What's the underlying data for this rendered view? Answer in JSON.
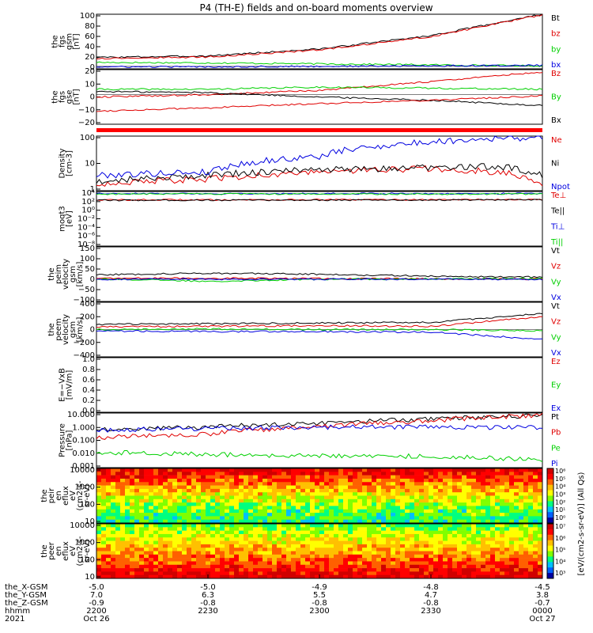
{
  "title": "P4 (TH-E) fields and on-board moments overview",
  "colors": {
    "black": "#000000",
    "red": "#e00000",
    "green": "#00d000",
    "blue": "#0000e0",
    "bar": "#ff0000"
  },
  "time_axis": {
    "ticks": [
      "2200",
      "2230",
      "2300",
      "2330",
      "0000"
    ],
    "dates": [
      "Oct 26",
      "",
      "",
      "",
      "Oct 27"
    ],
    "year": "2021",
    "row_labels": [
      "the_X-GSM",
      "the_Y-GSM",
      "the_Z-GSM",
      "hhmm"
    ],
    "rows": [
      [
        "-5.0",
        "-5.0",
        "-4.9",
        "-4.8",
        "-4.5"
      ],
      [
        "7.0",
        "6.3",
        "5.5",
        "4.7",
        "3.8"
      ],
      [
        "-0.9",
        "-0.8",
        "-0.8",
        "-0.8",
        "-0.7"
      ]
    ]
  },
  "colorbar": {
    "label": "[eV/(cm2-s-sr-eV)] (All Qs)",
    "ticks_peir": [
      "10⁶",
      "10⁵",
      "10⁴",
      "10³",
      "10²",
      "10¹",
      "10⁰"
    ],
    "ticks_peer": [
      "10⁷",
      "10⁶",
      "10⁵",
      "10⁴",
      "10³"
    ]
  },
  "chart_data": [
    {
      "type": "line",
      "ylabel": [
        "the",
        "fgs",
        "gsm",
        "[nT]"
      ],
      "yticks": [
        "100",
        "80",
        "60",
        "40",
        "20",
        "0"
      ],
      "ylim": [
        -5,
        105
      ],
      "legend": [
        {
          "label": "Bt",
          "color": "#000000"
        },
        {
          "label": "bz",
          "color": "#e00000"
        },
        {
          "label": "by",
          "color": "#00d000"
        },
        {
          "label": "bx",
          "color": "#0000e0"
        }
      ],
      "series": [
        {
          "label": "Bt",
          "color": "#000000",
          "x": [
            0,
            0.25,
            0.5,
            0.75,
            1.0
          ],
          "y": [
            18,
            21,
            35,
            62,
            105
          ]
        },
        {
          "label": "bz",
          "color": "#e00000",
          "x": [
            0,
            0.25,
            0.5,
            0.75,
            1.0
          ],
          "y": [
            16,
            19,
            33,
            60,
            104
          ]
        },
        {
          "label": "by",
          "color": "#00d000",
          "x": [
            0,
            0.25,
            0.5,
            0.75,
            1.0
          ],
          "y": [
            8,
            7,
            5,
            3,
            1
          ]
        },
        {
          "label": "bx",
          "color": "#0000e0",
          "x": [
            0,
            0.25,
            0.5,
            0.75,
            1.0
          ],
          "y": [
            -1,
            -1,
            0,
            1,
            2
          ]
        }
      ]
    },
    {
      "type": "line",
      "ylabel": [
        "the",
        "fgs",
        "gse",
        "[nT]"
      ],
      "yticks": [
        "20",
        "10",
        "0",
        "−10",
        "−20"
      ],
      "ylim": [
        -27,
        23
      ],
      "legend": [
        {
          "label": "Bz",
          "color": "#e00000"
        },
        {
          "label": "By",
          "color": "#00d000"
        },
        {
          "label": "Bx",
          "color": "#000000"
        }
      ],
      "series": [
        {
          "label": "Bz",
          "color": "#e00000",
          "x": [
            0,
            0.25,
            0.5,
            0.75,
            1.0
          ],
          "y": [
            -2,
            0,
            4,
            12,
            21
          ]
        },
        {
          "label": "By",
          "color": "#00d000",
          "x": [
            0,
            0.25,
            0.5,
            0.75,
            1.0
          ],
          "y": [
            5,
            5,
            7,
            6,
            5
          ]
        },
        {
          "label": "Bx",
          "color": "#000000",
          "x": [
            0,
            0.25,
            0.5,
            0.75,
            1.0
          ],
          "y": [
            3,
            2,
            -2,
            -5,
            -10
          ]
        },
        {
          "label": "Bz2",
          "color": "#e00000",
          "x": [
            0,
            0.25,
            0.5,
            0.75,
            1.0
          ],
          "y": [
            -15,
            -12,
            -8,
            -5,
            -1
          ]
        }
      ]
    },
    {
      "type": "line",
      "ylabel": [
        "Density",
        "[cm-3]"
      ],
      "yticks": [
        "100",
        "10",
        "1"
      ],
      "ylim": [
        0.3,
        250
      ],
      "log": true,
      "legend": [
        {
          "label": "Ne",
          "color": "#e00000"
        },
        {
          "label": "Ni",
          "color": "#000000"
        },
        {
          "label": "Npot",
          "color": "#0000e0"
        }
      ],
      "series": [
        {
          "label": "Ne",
          "color": "#e00000",
          "x": [
            0,
            0.25,
            0.5,
            0.75,
            0.9,
            1.0
          ],
          "y": [
            0.7,
            1.2,
            3.0,
            4.5,
            3.0,
            0.4
          ]
        },
        {
          "label": "Ni",
          "color": "#000000",
          "x": [
            0,
            0.25,
            0.5,
            0.75,
            0.9,
            1.0
          ],
          "y": [
            0.9,
            2.0,
            4.0,
            5.0,
            6.0,
            2.0
          ]
        },
        {
          "label": "Npot",
          "color": "#0000e0",
          "x": [
            0,
            0.25,
            0.5,
            0.75,
            0.9,
            1.0
          ],
          "y": [
            2.0,
            3.0,
            20,
            120,
            200,
            200
          ]
        }
      ]
    },
    {
      "type": "line",
      "ylabel": [
        "moqt3",
        "[eV]"
      ],
      "yticks": [
        "10⁴",
        "10²",
        "10⁰",
        "10⁻²",
        "10⁻⁴",
        "10⁻⁶",
        "10⁻⁸"
      ],
      "ylim": [
        1e-09,
        30000
      ],
      "log": true,
      "legend": [
        {
          "label": "Te⊥",
          "color": "#e00000"
        },
        {
          "label": "Te||",
          "color": "#000000"
        },
        {
          "label": "Ti⊥",
          "color": "#0000e0"
        },
        {
          "label": "Ti||",
          "color": "#00d000"
        }
      ],
      "series": [
        {
          "label": "Ti⊥",
          "color": "#0000e0",
          "x": [
            0,
            1
          ],
          "y": [
            9000,
            9000
          ]
        },
        {
          "label": "Ti||",
          "color": "#00d000",
          "x": [
            0,
            1
          ],
          "y": [
            7000,
            7000
          ]
        },
        {
          "label": "Te⊥",
          "color": "#e00000",
          "x": [
            0,
            1
          ],
          "y": [
            250,
            300
          ]
        },
        {
          "label": "Te||",
          "color": "#000000",
          "x": [
            0,
            1
          ],
          "y": [
            200,
            250
          ]
        }
      ]
    },
    {
      "type": "line",
      "ylabel": [
        "the",
        "peim",
        "velocity",
        "gsm",
        "[km/s]"
      ],
      "yticks": [
        "150",
        "100",
        "50",
        "0",
        "−50",
        "−100"
      ],
      "ylim": [
        -110,
        160
      ],
      "legend": [
        {
          "label": "Vt",
          "color": "#000000"
        },
        {
          "label": "Vz",
          "color": "#e00000"
        },
        {
          "label": "Vy",
          "color": "#00d000"
        },
        {
          "label": "Vx",
          "color": "#0000e0"
        }
      ],
      "series": [
        {
          "label": "Vt",
          "color": "#000000",
          "x": [
            0,
            0.25,
            0.5,
            0.75,
            1.0
          ],
          "y": [
            22,
            30,
            25,
            15,
            10
          ]
        },
        {
          "label": "Vz",
          "color": "#e00000",
          "x": [
            0,
            0.25,
            0.5,
            0.75,
            1.0
          ],
          "y": [
            5,
            5,
            3,
            2,
            1
          ]
        },
        {
          "label": "Vy",
          "color": "#00d000",
          "x": [
            0,
            0.25,
            0.5,
            0.75,
            1.0
          ],
          "y": [
            2,
            -10,
            0,
            2,
            3
          ]
        },
        {
          "label": "Vx",
          "color": "#0000e0",
          "x": [
            0,
            0.25,
            0.5,
            0.75,
            1.0
          ],
          "y": [
            0,
            0,
            0,
            0,
            0
          ]
        }
      ]
    },
    {
      "type": "line",
      "ylabel": [
        "the",
        "peem",
        "velocity",
        "gsm",
        "[km/s]"
      ],
      "yticks": [
        "400",
        "200",
        "0",
        "−200",
        "−400"
      ],
      "ylim": [
        -420,
        420
      ],
      "legend": [
        {
          "label": "Vt",
          "color": "#000000"
        },
        {
          "label": "Vz",
          "color": "#e00000"
        },
        {
          "label": "Vy",
          "color": "#00d000"
        },
        {
          "label": "Vx",
          "color": "#0000e0"
        }
      ],
      "series": [
        {
          "label": "Vt",
          "color": "#000000",
          "x": [
            0,
            0.25,
            0.5,
            0.75,
            1.0
          ],
          "y": [
            80,
            90,
            100,
            110,
            250
          ]
        },
        {
          "label": "Vz",
          "color": "#e00000",
          "x": [
            0,
            0.25,
            0.5,
            0.75,
            1.0
          ],
          "y": [
            40,
            50,
            60,
            50,
            200
          ]
        },
        {
          "label": "Vy",
          "color": "#00d000",
          "x": [
            0,
            0.25,
            0.5,
            0.75,
            1.0
          ],
          "y": [
            0,
            10,
            0,
            0,
            -20
          ]
        },
        {
          "label": "Vx",
          "color": "#0000e0",
          "x": [
            0,
            0.25,
            0.5,
            0.75,
            1.0
          ],
          "y": [
            -20,
            -30,
            -30,
            -40,
            -150
          ]
        }
      ]
    },
    {
      "type": "line",
      "ylabel": [
        "E=−VxB",
        "[mV/m]"
      ],
      "yticks": [
        "1.0",
        "0.8",
        "0.6",
        "0.4",
        "0.2",
        "0.0"
      ],
      "ylim": [
        0,
        1
      ],
      "legend": [
        {
          "label": "Ez",
          "color": "#e00000"
        },
        {
          "label": "Ey",
          "color": "#00d000"
        },
        {
          "label": "Ex",
          "color": "#0000e0"
        }
      ],
      "series": []
    },
    {
      "type": "line",
      "ylabel": [
        "Pressure",
        "[nPa]"
      ],
      "yticks": [
        "10.000",
        "1.000",
        "0.100",
        "0.010",
        "0.001"
      ],
      "ylim": [
        0.0008,
        12
      ],
      "log": true,
      "legend": [
        {
          "label": "Pt",
          "color": "#000000"
        },
        {
          "label": "Pb",
          "color": "#e00000"
        },
        {
          "label": "Pe",
          "color": "#00d000"
        },
        {
          "label": "Pi",
          "color": "#0000e0"
        }
      ],
      "series": [
        {
          "label": "Pt",
          "color": "#000000",
          "x": [
            0,
            0.25,
            0.5,
            0.75,
            1.0
          ],
          "y": [
            0.7,
            1.0,
            2.0,
            4.0,
            8.0
          ]
        },
        {
          "label": "Pb",
          "color": "#e00000",
          "x": [
            0,
            0.25,
            0.5,
            0.75,
            1.0
          ],
          "y": [
            0.15,
            0.3,
            1.0,
            3.0,
            8.0
          ]
        },
        {
          "label": "Pe",
          "color": "#00d000",
          "x": [
            0,
            0.25,
            0.5,
            0.75,
            1.0
          ],
          "y": [
            0.012,
            0.008,
            0.006,
            0.006,
            0.003
          ]
        },
        {
          "label": "Pi",
          "color": "#0000e0",
          "x": [
            0,
            0.25,
            0.5,
            0.75,
            1.0
          ],
          "y": [
            0.6,
            0.8,
            1.0,
            1.0,
            0.9
          ]
        }
      ]
    },
    {
      "type": "heatmap",
      "ylabel": [
        "the",
        "peir",
        "en",
        "eflux",
        "eV",
        "(cm2-s-",
        "sr-eV)"
      ],
      "yticks": [
        "10000",
        "1000",
        "100",
        "10"
      ],
      "ylim": [
        6,
        25000
      ],
      "log": true
    },
    {
      "type": "heatmap",
      "ylabel": [
        "the",
        "peer",
        "en",
        "eflux",
        "eV",
        "(cm2-s-",
        "sr-eV)"
      ],
      "yticks": [
        "10000",
        "1000",
        "100",
        "10"
      ],
      "ylim": [
        6,
        25000
      ],
      "log": true
    }
  ]
}
